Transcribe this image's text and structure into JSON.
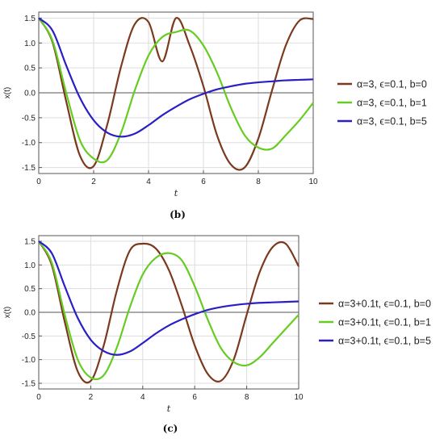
{
  "chart_data": [
    {
      "id": "b",
      "type": "line",
      "caption": "(b)",
      "xlabel": "t",
      "ylabel": "x(t)",
      "xlim": [
        0,
        10
      ],
      "ylim": [
        -1.62,
        1.62
      ],
      "xticks": [
        0,
        2,
        4,
        6,
        8,
        10
      ],
      "yticks": [
        -1.5,
        -1.0,
        -0.5,
        0.0,
        0.5,
        1.0,
        1.5
      ],
      "xtick_labels": [
        "0",
        "2",
        "4",
        "6",
        "8",
        "10"
      ],
      "ytick_labels": [
        "-1.5",
        "-1.0",
        "-0.5",
        "0.0",
        "0.5",
        "1.0",
        "1.5"
      ],
      "grid": true,
      "legend_position": "right",
      "series": [
        {
          "name": "α=3, ϵ=0.1, b=0",
          "color": "#7b3a1e",
          "x": [
            0,
            0.5,
            1,
            1.5,
            2,
            2.5,
            3,
            3.5,
            4,
            4.5,
            5,
            5.5,
            6,
            6.5,
            7,
            7.5,
            8,
            8.5,
            9,
            9.5,
            10
          ],
          "y": [
            1.5,
            1.02,
            -0.17,
            -1.26,
            -1.47,
            -0.63,
            0.53,
            1.38,
            1.42,
            0.63,
            1.5,
            0.95,
            0.13,
            -0.86,
            -1.44,
            -1.5,
            -0.92,
            0.05,
            0.95,
            1.45,
            1.48
          ]
        },
        {
          "name": "α=3, ϵ=0.1, b=1",
          "color": "#66cc22",
          "x": [
            0,
            0.5,
            1,
            1.5,
            2,
            2.5,
            3,
            3.5,
            4,
            4.5,
            5,
            5.5,
            6,
            6.5,
            7,
            7.5,
            8,
            8.5,
            9,
            9.5,
            10
          ],
          "y": [
            1.5,
            1.05,
            0.0,
            -0.95,
            -1.32,
            -1.35,
            -0.8,
            0.05,
            0.75,
            1.12,
            1.22,
            1.25,
            0.95,
            0.4,
            -0.3,
            -0.85,
            -1.1,
            -1.12,
            -0.85,
            -0.55,
            -0.2
          ]
        },
        {
          "name": "α=3, ϵ=0.1, b=5",
          "color": "#2a1fc4",
          "x": [
            0,
            0.5,
            1,
            1.5,
            2,
            2.5,
            3,
            3.5,
            4,
            4.5,
            5,
            5.5,
            6,
            6.5,
            7,
            7.5,
            8,
            8.5,
            9,
            9.5,
            10
          ],
          "y": [
            1.5,
            1.25,
            0.55,
            -0.1,
            -0.55,
            -0.8,
            -0.88,
            -0.82,
            -0.65,
            -0.45,
            -0.28,
            -0.13,
            -0.02,
            0.07,
            0.13,
            0.18,
            0.21,
            0.23,
            0.25,
            0.26,
            0.27
          ]
        }
      ]
    },
    {
      "id": "c",
      "type": "line",
      "caption": "(c)",
      "xlabel": "t",
      "ylabel": "x(t)",
      "xlim": [
        0,
        10
      ],
      "ylim": [
        -1.62,
        1.62
      ],
      "xticks": [
        0,
        2,
        4,
        6,
        8,
        10
      ],
      "yticks": [
        -1.5,
        -1.0,
        -0.5,
        0.0,
        0.5,
        1.0,
        1.5
      ],
      "xtick_labels": [
        "0",
        "2",
        "4",
        "6",
        "8",
        "10"
      ],
      "ytick_labels": [
        "-1.5",
        "-1.0",
        "-0.5",
        "0.0",
        "0.5",
        "1.0",
        "1.5"
      ],
      "grid": true,
      "legend_position": "right",
      "series": [
        {
          "name": "α=3+0.1t, ϵ=0.1, b=0",
          "color": "#7b3a1e",
          "x": [
            0,
            0.5,
            1,
            1.5,
            2,
            2.5,
            3,
            3.5,
            4,
            4.5,
            5,
            5.5,
            6,
            6.5,
            7,
            7.5,
            8,
            8.5,
            9,
            9.5,
            10
          ],
          "y": [
            1.5,
            1.0,
            -0.2,
            -1.25,
            -1.45,
            -0.7,
            0.45,
            1.3,
            1.45,
            1.35,
            0.9,
            0.15,
            -0.7,
            -1.3,
            -1.45,
            -1.0,
            -0.05,
            0.85,
            1.38,
            1.45,
            0.97
          ]
        },
        {
          "name": "α=3+0.1t, ϵ=0.1, b=1",
          "color": "#66cc22",
          "x": [
            0,
            0.5,
            1,
            1.5,
            2,
            2.5,
            3,
            3.5,
            4,
            4.5,
            5,
            5.5,
            6,
            6.5,
            7,
            7.5,
            8,
            8.5,
            9,
            9.5,
            10
          ],
          "y": [
            1.5,
            1.05,
            -0.05,
            -1.0,
            -1.38,
            -1.33,
            -0.75,
            0.1,
            0.8,
            1.15,
            1.25,
            1.1,
            0.55,
            -0.15,
            -0.75,
            -1.05,
            -1.12,
            -0.95,
            -0.65,
            -0.35,
            -0.05
          ]
        },
        {
          "name": "α=3+0.1t, ϵ=0.1, b=5",
          "color": "#2a1fc4",
          "x": [
            0,
            0.5,
            1,
            1.5,
            2,
            2.5,
            3,
            3.5,
            4,
            4.5,
            5,
            5.5,
            6,
            6.5,
            7,
            7.5,
            8,
            8.5,
            9,
            9.5,
            10
          ],
          "y": [
            1.5,
            1.25,
            0.55,
            -0.12,
            -0.58,
            -0.82,
            -0.9,
            -0.83,
            -0.65,
            -0.45,
            -0.28,
            -0.15,
            -0.04,
            0.05,
            0.11,
            0.15,
            0.18,
            0.2,
            0.21,
            0.22,
            0.23
          ]
        }
      ]
    }
  ]
}
